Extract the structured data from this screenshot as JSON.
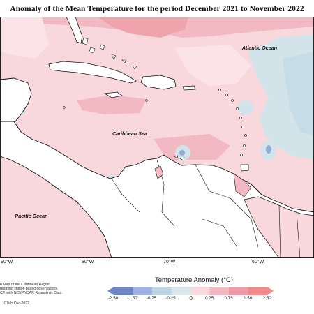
{
  "title": "Anomaly of the Mean Temperature for the period December 2021 to November 2022",
  "map": {
    "ocean_labels": {
      "atlantic": "Atlantic Ocean",
      "caribbean": "Caribbean Sea",
      "pacific": "Pacific Ocean"
    },
    "longitude_ticks": [
      "90°W",
      "80°W",
      "70°W",
      "60°W"
    ]
  },
  "notes": {
    "line1": "n Map of the Caribbean Region",
    "line2": "regating station based observations,",
    "line3": "CF, with NCEPNCAR Reanalysis Data."
  },
  "credit": "CIMH Dec-2022",
  "legend": {
    "title": "Temperature Anomaly (°C)",
    "labels": [
      "-2.50",
      "-1.50",
      "-0.75",
      "-0.25",
      "0",
      "0.25",
      "0.75",
      "1.50",
      "2.50"
    ],
    "colors": [
      "#6f86c9",
      "#9fb0e3",
      "#bcd6e4",
      "#d8e6ec",
      "#f8d7dd",
      "#f2b9c2",
      "#ee9aa7",
      "#f28a8a"
    ]
  }
}
